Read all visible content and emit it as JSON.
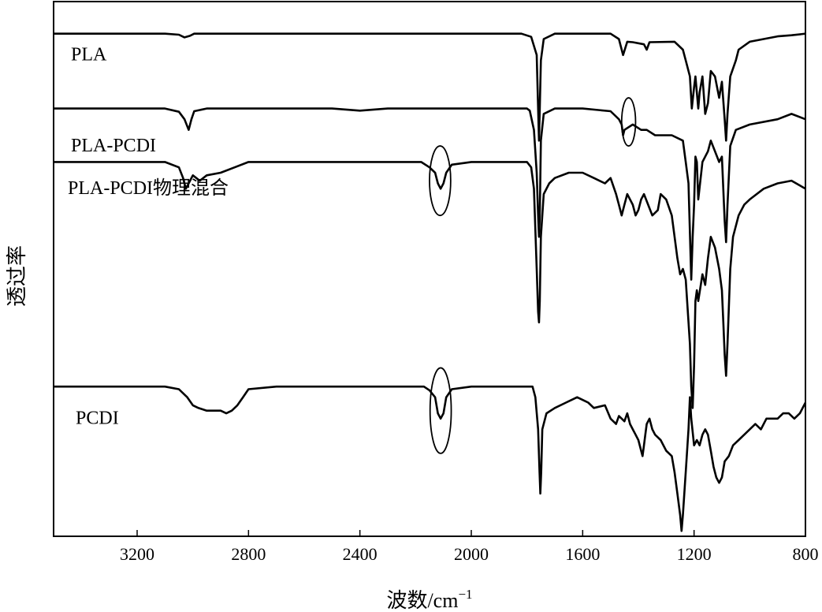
{
  "chart_data": {
    "type": "line",
    "title": "",
    "xlabel_main": "波数/cm",
    "xlabel_sup": "−1",
    "ylabel": "透过率",
    "xlim": [
      3500,
      800
    ],
    "x_reversed": true,
    "x_ticks": [
      3200,
      2800,
      2400,
      2000,
      1600,
      1200,
      800
    ],
    "ylim": [
      0,
      100
    ],
    "y_ticks_shown": false,
    "grid": false,
    "legend": "none",
    "series": [
      {
        "name": "PLA",
        "baseline": 92,
        "points": [
          [
            3500,
            94
          ],
          [
            3400,
            94
          ],
          [
            3100,
            94
          ],
          [
            3050,
            93.8
          ],
          [
            3030,
            93.3
          ],
          [
            3010,
            93.6
          ],
          [
            2995,
            94
          ],
          [
            2950,
            94
          ],
          [
            2900,
            94
          ],
          [
            2500,
            94
          ],
          [
            2100,
            94
          ],
          [
            2000,
            94
          ],
          [
            1820,
            94
          ],
          [
            1785,
            93.4
          ],
          [
            1765,
            90
          ],
          [
            1760,
            80
          ],
          [
            1757,
            74
          ],
          [
            1754,
            80
          ],
          [
            1750,
            89
          ],
          [
            1740,
            93
          ],
          [
            1700,
            94
          ],
          [
            1500,
            94
          ],
          [
            1470,
            93
          ],
          [
            1455,
            90
          ],
          [
            1440,
            92.5
          ],
          [
            1420,
            92.4
          ],
          [
            1380,
            92
          ],
          [
            1370,
            91
          ],
          [
            1360,
            92.4
          ],
          [
            1270,
            92.5
          ],
          [
            1240,
            91
          ],
          [
            1230,
            89
          ],
          [
            1215,
            86
          ],
          [
            1208,
            80
          ],
          [
            1200,
            84
          ],
          [
            1195,
            86
          ],
          [
            1185,
            80
          ],
          [
            1180,
            83
          ],
          [
            1170,
            86
          ],
          [
            1160,
            79
          ],
          [
            1150,
            81
          ],
          [
            1140,
            87
          ],
          [
            1125,
            86
          ],
          [
            1110,
            82
          ],
          [
            1100,
            85
          ],
          [
            1090,
            78
          ],
          [
            1085,
            74
          ],
          [
            1080,
            79
          ],
          [
            1070,
            86
          ],
          [
            1050,
            89
          ],
          [
            1040,
            91
          ],
          [
            1000,
            92.5
          ],
          [
            950,
            93
          ],
          [
            900,
            93.5
          ],
          [
            850,
            93.7
          ],
          [
            800,
            94
          ]
        ]
      },
      {
        "name": "PLA-PCDI",
        "baseline": 80,
        "points": [
          [
            3500,
            80
          ],
          [
            3100,
            80
          ],
          [
            3050,
            79.4
          ],
          [
            3030,
            78
          ],
          [
            3015,
            76
          ],
          [
            3005,
            78
          ],
          [
            2995,
            79.5
          ],
          [
            2950,
            80
          ],
          [
            2500,
            80
          ],
          [
            2400,
            79.6
          ],
          [
            2300,
            80
          ],
          [
            2100,
            80
          ],
          [
            2000,
            80
          ],
          [
            1800,
            80
          ],
          [
            1790,
            79.6
          ],
          [
            1775,
            76
          ],
          [
            1765,
            68
          ],
          [
            1760,
            60
          ],
          [
            1757,
            56
          ],
          [
            1754,
            60
          ],
          [
            1750,
            74
          ],
          [
            1740,
            79
          ],
          [
            1700,
            80
          ],
          [
            1600,
            80
          ],
          [
            1500,
            79.5
          ],
          [
            1470,
            78
          ],
          [
            1460,
            77
          ],
          [
            1455,
            75
          ],
          [
            1450,
            76
          ],
          [
            1420,
            77
          ],
          [
            1390,
            76
          ],
          [
            1370,
            76
          ],
          [
            1340,
            75
          ],
          [
            1280,
            75
          ],
          [
            1240,
            74
          ],
          [
            1230,
            70
          ],
          [
            1220,
            66
          ],
          [
            1210,
            48
          ],
          [
            1205,
            56
          ],
          [
            1200,
            62
          ],
          [
            1195,
            71
          ],
          [
            1190,
            70
          ],
          [
            1185,
            63
          ],
          [
            1170,
            70
          ],
          [
            1150,
            72
          ],
          [
            1140,
            74
          ],
          [
            1110,
            70
          ],
          [
            1100,
            71
          ],
          [
            1090,
            59
          ],
          [
            1085,
            55
          ],
          [
            1080,
            62
          ],
          [
            1070,
            73
          ],
          [
            1050,
            76
          ],
          [
            1000,
            77
          ],
          [
            900,
            78
          ],
          [
            850,
            79
          ],
          [
            800,
            78
          ]
        ]
      },
      {
        "name": "PLA-PCDI物理混合",
        "baseline": 70,
        "points": [
          [
            3500,
            70
          ],
          [
            3100,
            70
          ],
          [
            3050,
            69
          ],
          [
            3035,
            67
          ],
          [
            3025,
            65
          ],
          [
            3015,
            66
          ],
          [
            3000,
            67.5
          ],
          [
            2975,
            66.5
          ],
          [
            2950,
            67.5
          ],
          [
            2900,
            68
          ],
          [
            2850,
            69
          ],
          [
            2800,
            70
          ],
          [
            2300,
            70
          ],
          [
            2180,
            70
          ],
          [
            2150,
            69
          ],
          [
            2130,
            68
          ],
          [
            2120,
            66
          ],
          [
            2110,
            65
          ],
          [
            2100,
            66
          ],
          [
            2090,
            68
          ],
          [
            2070,
            69.5
          ],
          [
            2000,
            70
          ],
          [
            1800,
            70
          ],
          [
            1785,
            69
          ],
          [
            1775,
            65
          ],
          [
            1765,
            50
          ],
          [
            1760,
            42
          ],
          [
            1757,
            40
          ],
          [
            1754,
            44
          ],
          [
            1750,
            56
          ],
          [
            1740,
            64
          ],
          [
            1720,
            66
          ],
          [
            1700,
            67
          ],
          [
            1650,
            68
          ],
          [
            1600,
            68
          ],
          [
            1560,
            67
          ],
          [
            1520,
            66
          ],
          [
            1500,
            67
          ],
          [
            1480,
            64
          ],
          [
            1470,
            62
          ],
          [
            1460,
            60
          ],
          [
            1450,
            62
          ],
          [
            1440,
            64
          ],
          [
            1420,
            62
          ],
          [
            1410,
            60
          ],
          [
            1400,
            61
          ],
          [
            1390,
            63
          ],
          [
            1380,
            64
          ],
          [
            1365,
            62
          ],
          [
            1350,
            60
          ],
          [
            1330,
            61
          ],
          [
            1320,
            64
          ],
          [
            1300,
            63
          ],
          [
            1280,
            60
          ],
          [
            1260,
            52
          ],
          [
            1250,
            49
          ],
          [
            1240,
            50
          ],
          [
            1230,
            48
          ],
          [
            1215,
            36
          ],
          [
            1210,
            28
          ],
          [
            1205,
            24
          ],
          [
            1200,
            32
          ],
          [
            1195,
            44
          ],
          [
            1190,
            46
          ],
          [
            1185,
            44
          ],
          [
            1170,
            49
          ],
          [
            1160,
            47
          ],
          [
            1150,
            52
          ],
          [
            1140,
            56
          ],
          [
            1125,
            54
          ],
          [
            1110,
            50
          ],
          [
            1100,
            46
          ],
          [
            1095,
            40
          ],
          [
            1090,
            34
          ],
          [
            1085,
            30
          ],
          [
            1080,
            36
          ],
          [
            1070,
            50
          ],
          [
            1060,
            56
          ],
          [
            1040,
            60
          ],
          [
            1020,
            62
          ],
          [
            1000,
            63
          ],
          [
            950,
            65
          ],
          [
            900,
            66
          ],
          [
            850,
            66.5
          ],
          [
            800,
            65
          ]
        ]
      },
      {
        "name": "PCDI",
        "baseline": 27,
        "points": [
          [
            3500,
            28
          ],
          [
            3300,
            28
          ],
          [
            3100,
            28
          ],
          [
            3050,
            27.5
          ],
          [
            3020,
            26
          ],
          [
            3000,
            24.5
          ],
          [
            2980,
            24
          ],
          [
            2950,
            23.5
          ],
          [
            2920,
            23.5
          ],
          [
            2900,
            23.5
          ],
          [
            2880,
            23
          ],
          [
            2860,
            23.5
          ],
          [
            2840,
            24.5
          ],
          [
            2820,
            26
          ],
          [
            2800,
            27.5
          ],
          [
            2700,
            28
          ],
          [
            2300,
            28
          ],
          [
            2170,
            28
          ],
          [
            2150,
            27.3
          ],
          [
            2130,
            26
          ],
          [
            2120,
            23
          ],
          [
            2110,
            22
          ],
          [
            2100,
            23
          ],
          [
            2090,
            26
          ],
          [
            2070,
            27.5
          ],
          [
            2000,
            28
          ],
          [
            1780,
            28
          ],
          [
            1770,
            26
          ],
          [
            1760,
            20
          ],
          [
            1755,
            12
          ],
          [
            1752,
            8
          ],
          [
            1749,
            12
          ],
          [
            1745,
            20
          ],
          [
            1730,
            23
          ],
          [
            1700,
            24
          ],
          [
            1660,
            25
          ],
          [
            1620,
            26
          ],
          [
            1600,
            25.5
          ],
          [
            1580,
            25
          ],
          [
            1560,
            24
          ],
          [
            1520,
            24.5
          ],
          [
            1500,
            22
          ],
          [
            1480,
            21
          ],
          [
            1470,
            22.5
          ],
          [
            1460,
            22
          ],
          [
            1450,
            21.5
          ],
          [
            1440,
            23
          ],
          [
            1430,
            21
          ],
          [
            1420,
            20
          ],
          [
            1410,
            19
          ],
          [
            1400,
            18
          ],
          [
            1390,
            16
          ],
          [
            1385,
            15
          ],
          [
            1380,
            17
          ],
          [
            1375,
            19
          ],
          [
            1370,
            21
          ],
          [
            1360,
            22
          ],
          [
            1350,
            20
          ],
          [
            1340,
            19
          ],
          [
            1320,
            18
          ],
          [
            1300,
            16
          ],
          [
            1280,
            15
          ],
          [
            1270,
            12
          ],
          [
            1260,
            8
          ],
          [
            1250,
            4
          ],
          [
            1245,
            1
          ],
          [
            1240,
            4
          ],
          [
            1230,
            12
          ],
          [
            1220,
            20
          ],
          [
            1215,
            26
          ],
          [
            1210,
            22
          ],
          [
            1200,
            17
          ],
          [
            1190,
            18
          ],
          [
            1180,
            17
          ],
          [
            1170,
            19
          ],
          [
            1160,
            20
          ],
          [
            1150,
            19
          ],
          [
            1140,
            16
          ],
          [
            1130,
            13
          ],
          [
            1120,
            11
          ],
          [
            1110,
            10
          ],
          [
            1100,
            11
          ],
          [
            1090,
            14
          ],
          [
            1075,
            15
          ],
          [
            1060,
            17
          ],
          [
            1040,
            18
          ],
          [
            1020,
            19
          ],
          [
            1000,
            20
          ],
          [
            980,
            21
          ],
          [
            960,
            20
          ],
          [
            940,
            22
          ],
          [
            920,
            22
          ],
          [
            900,
            22
          ],
          [
            880,
            23
          ],
          [
            860,
            23
          ],
          [
            840,
            22
          ],
          [
            820,
            23
          ],
          [
            800,
            25
          ]
        ]
      }
    ],
    "annotations": [
      {
        "type": "ellipse",
        "series": "PLA-PCDI",
        "x_center": 1435,
        "y_center": 77.5,
        "rx_units": 25,
        "ry_units": 4.5
      },
      {
        "type": "ellipse",
        "series": "PLA-PCDI物理混合",
        "x_center": 2112,
        "y_center": 66.5,
        "rx_units": 38,
        "ry_units": 6.5
      },
      {
        "type": "ellipse",
        "series": "PCDI",
        "x_center": 2110,
        "y_center": 23.5,
        "rx_units": 38,
        "ry_units": 8
      }
    ]
  }
}
